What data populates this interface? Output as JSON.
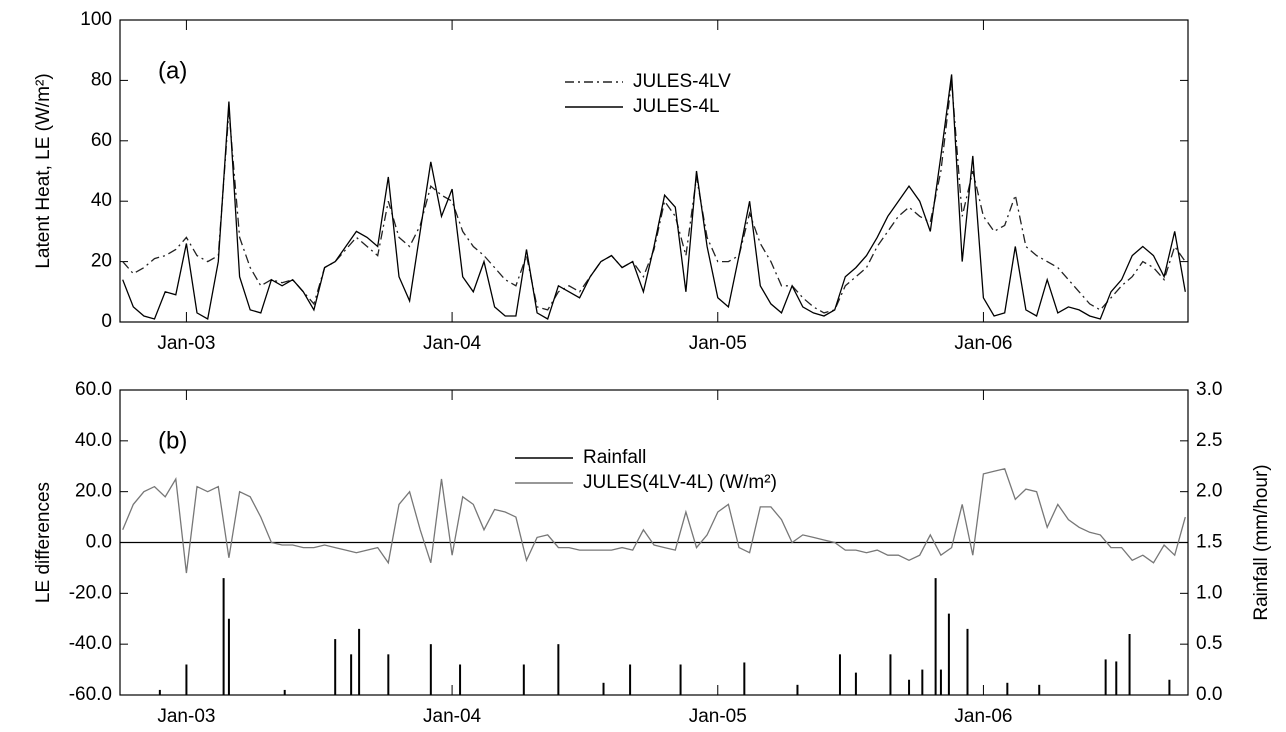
{
  "chart_data": [
    {
      "type": "line",
      "annotation": "(a)",
      "ylabel": "Latent Heat, LE (W/m²)",
      "x": [
        2002.76,
        2002.8,
        2002.84,
        2002.88,
        2002.92,
        2002.96,
        2003.0,
        2003.04,
        2003.08,
        2003.12,
        2003.16,
        2003.2,
        2003.24,
        2003.28,
        2003.32,
        2003.36,
        2003.4,
        2003.44,
        2003.48,
        2003.52,
        2003.56,
        2003.6,
        2003.64,
        2003.68,
        2003.72,
        2003.76,
        2003.8,
        2003.84,
        2003.88,
        2003.92,
        2003.96,
        2004.0,
        2004.04,
        2004.08,
        2004.12,
        2004.16,
        2004.2,
        2004.24,
        2004.28,
        2004.32,
        2004.36,
        2004.4,
        2004.44,
        2004.48,
        2004.52,
        2004.56,
        2004.6,
        2004.64,
        2004.68,
        2004.72,
        2004.76,
        2004.8,
        2004.84,
        2004.88,
        2004.92,
        2004.96,
        2005.0,
        2005.04,
        2005.08,
        2005.12,
        2005.16,
        2005.2,
        2005.24,
        2005.28,
        2005.32,
        2005.36,
        2005.4,
        2005.44,
        2005.48,
        2005.52,
        2005.56,
        2005.6,
        2005.64,
        2005.68,
        2005.72,
        2005.76,
        2005.8,
        2005.84,
        2005.88,
        2005.92,
        2005.96,
        2006.0,
        2006.04,
        2006.08,
        2006.12,
        2006.16,
        2006.2,
        2006.24,
        2006.28,
        2006.32,
        2006.36,
        2006.4,
        2006.44,
        2006.48,
        2006.52,
        2006.56,
        2006.6,
        2006.64,
        2006.68,
        2006.72,
        2006.76
      ],
      "series": [
        {
          "name": "JULES-4LV",
          "color": "#222222",
          "linestyle": "dashdot",
          "values": [
            20,
            16,
            18,
            21,
            22,
            24,
            28,
            22,
            20,
            22,
            70,
            28,
            18,
            12,
            14,
            13,
            14,
            10,
            6,
            18,
            20,
            24,
            28,
            25,
            22,
            40,
            28,
            25,
            32,
            45,
            42,
            40,
            30,
            25,
            22,
            18,
            14,
            12,
            22,
            5,
            4,
            10,
            12,
            10,
            15,
            20,
            22,
            18,
            20,
            15,
            24,
            40,
            35,
            22,
            48,
            28,
            20,
            20,
            22,
            36,
            26,
            20,
            12,
            12,
            8,
            5,
            3,
            4,
            12,
            15,
            18,
            25,
            30,
            35,
            38,
            35,
            33,
            50,
            80,
            35,
            50,
            35,
            30,
            32,
            42,
            25,
            22,
            20,
            18,
            14,
            10,
            6,
            4,
            8,
            12,
            15,
            20,
            18,
            14,
            25,
            20
          ]
        },
        {
          "name": "JULES-4L",
          "color": "#000000",
          "linestyle": "solid",
          "values": [
            14,
            5,
            2,
            1,
            10,
            9,
            26,
            3,
            1,
            20,
            73,
            15,
            4,
            3,
            14,
            12,
            14,
            10,
            4,
            18,
            20,
            25,
            30,
            28,
            25,
            48,
            15,
            7,
            30,
            53,
            35,
            44,
            15,
            10,
            20,
            5,
            2,
            2,
            24,
            3,
            1,
            12,
            10,
            8,
            15,
            20,
            22,
            18,
            20,
            10,
            25,
            42,
            38,
            10,
            50,
            25,
            8,
            5,
            22,
            40,
            12,
            6,
            3,
            12,
            5,
            3,
            2,
            4,
            15,
            18,
            22,
            28,
            35,
            40,
            45,
            40,
            30,
            55,
            82,
            20,
            55,
            8,
            2,
            3,
            25,
            4,
            2,
            14,
            3,
            5,
            4,
            2,
            1,
            10,
            14,
            22,
            25,
            22,
            15,
            30,
            10
          ]
        }
      ],
      "xlim": [
        2002.75,
        2006.77
      ],
      "xticks": [
        {
          "value": 2003,
          "label": "Jan-03"
        },
        {
          "value": 2004,
          "label": "Jan-04"
        },
        {
          "value": 2005,
          "label": "Jan-05"
        },
        {
          "value": 2006,
          "label": "Jan-06"
        }
      ],
      "ylim": [
        0,
        100
      ],
      "yticks": [
        0,
        20,
        40,
        60,
        80,
        100
      ]
    },
    {
      "type": "line",
      "annotation": "(b)",
      "ylabel": "LE differences",
      "y2label": "Rainfall (mm/hour)",
      "zero_line": true,
      "x": [
        2002.76,
        2002.8,
        2002.84,
        2002.88,
        2002.92,
        2002.96,
        2003.0,
        2003.04,
        2003.08,
        2003.12,
        2003.16,
        2003.2,
        2003.24,
        2003.28,
        2003.32,
        2003.36,
        2003.4,
        2003.44,
        2003.48,
        2003.52,
        2003.56,
        2003.6,
        2003.64,
        2003.68,
        2003.72,
        2003.76,
        2003.8,
        2003.84,
        2003.88,
        2003.92,
        2003.96,
        2004.0,
        2004.04,
        2004.08,
        2004.12,
        2004.16,
        2004.2,
        2004.24,
        2004.28,
        2004.32,
        2004.36,
        2004.4,
        2004.44,
        2004.48,
        2004.52,
        2004.56,
        2004.6,
        2004.64,
        2004.68,
        2004.72,
        2004.76,
        2004.8,
        2004.84,
        2004.88,
        2004.92,
        2004.96,
        2005.0,
        2005.04,
        2005.08,
        2005.12,
        2005.16,
        2005.2,
        2005.24,
        2005.28,
        2005.32,
        2005.36,
        2005.4,
        2005.44,
        2005.48,
        2005.52,
        2005.56,
        2005.6,
        2005.64,
        2005.68,
        2005.72,
        2005.76,
        2005.8,
        2005.84,
        2005.88,
        2005.92,
        2005.96,
        2006.0,
        2006.04,
        2006.08,
        2006.12,
        2006.16,
        2006.2,
        2006.24,
        2006.28,
        2006.32,
        2006.36,
        2006.4,
        2006.44,
        2006.48,
        2006.52,
        2006.56,
        2006.6,
        2006.64,
        2006.68,
        2006.72,
        2006.76
      ],
      "series": [
        {
          "name": "Rainfall",
          "color": "#000000",
          "type": "bar",
          "axis": "y2",
          "x": [
            2002.9,
            2003.0,
            2003.14,
            2003.16,
            2003.37,
            2003.56,
            2003.62,
            2003.65,
            2003.76,
            2003.92,
            2004.03,
            2004.27,
            2004.4,
            2004.57,
            2004.67,
            2004.86,
            2005.1,
            2005.3,
            2005.46,
            2005.52,
            2005.65,
            2005.72,
            2005.77,
            2005.82,
            2005.84,
            2005.87,
            2005.94,
            2006.09,
            2006.21,
            2006.46,
            2006.5,
            2006.55,
            2006.7
          ],
          "values": [
            0.05,
            0.3,
            1.15,
            0.75,
            0.05,
            0.55,
            0.4,
            0.65,
            0.4,
            0.5,
            0.3,
            0.3,
            0.5,
            0.12,
            0.3,
            0.3,
            0.32,
            0.1,
            0.4,
            0.22,
            0.4,
            0.15,
            0.25,
            1.15,
            0.25,
            0.8,
            0.65,
            0.12,
            0.1,
            0.35,
            0.33,
            0.6,
            0.15
          ]
        },
        {
          "name": "JULES(4LV-4L) (W/m²)",
          "color": "#777777",
          "linestyle": "solid",
          "values": [
            5,
            15,
            20,
            22,
            18,
            25,
            -12,
            22,
            20,
            22,
            -6,
            20,
            18,
            10,
            0,
            -1,
            -1,
            -2,
            -2,
            -1,
            -2,
            -3,
            -4,
            -3,
            -2,
            -8,
            15,
            20,
            5,
            -8,
            25,
            -5,
            18,
            15,
            5,
            13,
            12,
            10,
            -7,
            2,
            3,
            -2,
            -2,
            -3,
            -3,
            -3,
            -3,
            -2,
            -3,
            5,
            -1,
            -2,
            -3,
            12,
            -2,
            3,
            12,
            15,
            -2,
            -4,
            14,
            14,
            9,
            0,
            3,
            2,
            1,
            0,
            -3,
            -3,
            -4,
            -3,
            -5,
            -5,
            -7,
            -5,
            3,
            -5,
            -2,
            15,
            -5,
            27,
            28,
            29,
            17,
            21,
            20,
            6,
            15,
            9,
            6,
            4,
            3,
            -2,
            -2,
            -7,
            -5,
            -8,
            -1,
            -5,
            10
          ]
        }
      ],
      "xlim": [
        2002.75,
        2006.77
      ],
      "xticks": [
        {
          "value": 2003,
          "label": "Jan-03"
        },
        {
          "value": 2004,
          "label": "Jan-04"
        },
        {
          "value": 2005,
          "label": "Jan-05"
        },
        {
          "value": 2006,
          "label": "Jan-06"
        }
      ],
      "ylim": [
        -60,
        60
      ],
      "yticks": [
        {
          "value": -60,
          "label": "-60.0"
        },
        {
          "value": -40,
          "label": "-40.0"
        },
        {
          "value": -20,
          "label": "-20.0"
        },
        {
          "value": 0,
          "label": "0.0"
        },
        {
          "value": 20,
          "label": "20.0"
        },
        {
          "value": 40,
          "label": "40.0"
        },
        {
          "value": 60,
          "label": "60.0"
        }
      ],
      "y2lim": [
        0,
        3
      ],
      "y2ticks": [
        {
          "value": 0,
          "label": "0.0"
        },
        {
          "value": 0.5,
          "label": "0.5"
        },
        {
          "value": 1,
          "label": "1.0"
        },
        {
          "value": 1.5,
          "label": "1.5"
        },
        {
          "value": 2,
          "label": "2.0"
        },
        {
          "value": 2.5,
          "label": "2.5"
        },
        {
          "value": 3,
          "label": "3.0"
        }
      ]
    }
  ]
}
